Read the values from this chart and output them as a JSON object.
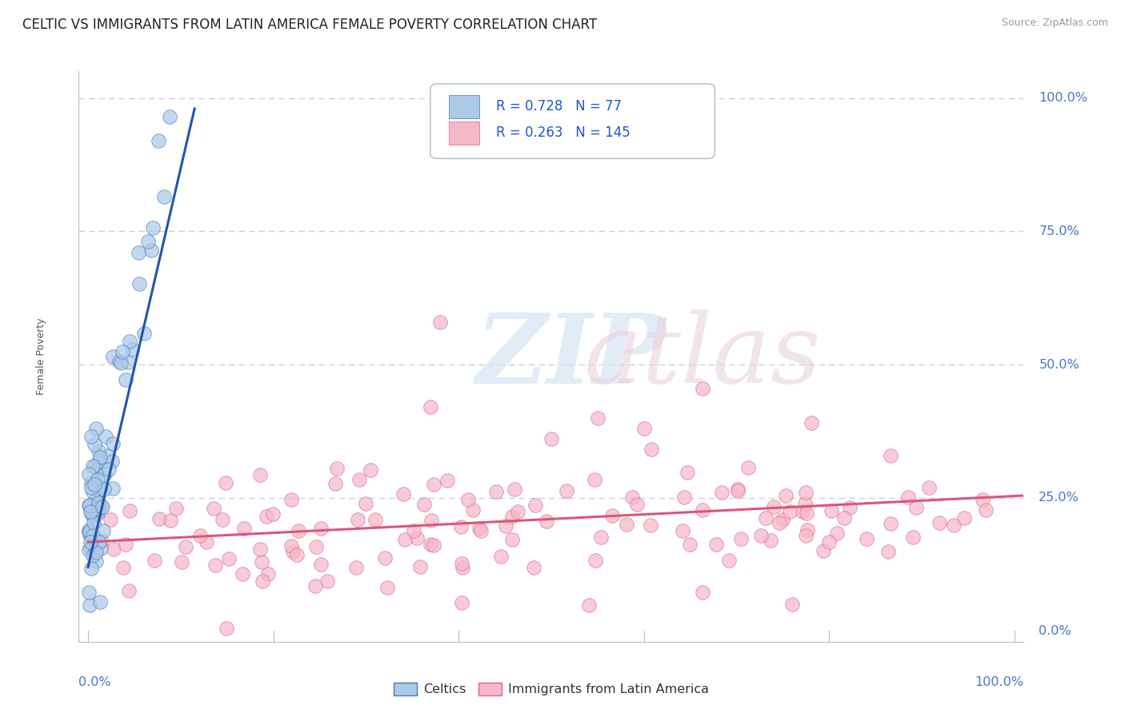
{
  "title": "CELTIC VS IMMIGRANTS FROM LATIN AMERICA FEMALE POVERTY CORRELATION CHART",
  "source": "Source: ZipAtlas.com",
  "ylabel": "Female Poverty",
  "series1_name": "Celtics",
  "series1_R": "0.728",
  "series1_N": "77",
  "series1_color": "#adc9e8",
  "series1_edge_color": "#4477bb",
  "series1_line_color": "#2255aa",
  "series2_name": "Immigrants from Latin America",
  "series2_R": "0.263",
  "series2_N": "145",
  "series2_color": "#f5b8c8",
  "series2_edge_color": "#dd6688",
  "series2_line_color": "#dd5577",
  "legend_R_color": "#2255cc",
  "background_color": "#ffffff",
  "watermark_zip": "ZIP",
  "watermark_atlas": "atlas",
  "grid_color": "#ccccdd",
  "title_color": "#222222",
  "axis_label_color": "#4477cc",
  "title_fontsize": 12,
  "source_fontsize": 9,
  "legend_fontsize": 12,
  "ylabel_fontsize": 9
}
